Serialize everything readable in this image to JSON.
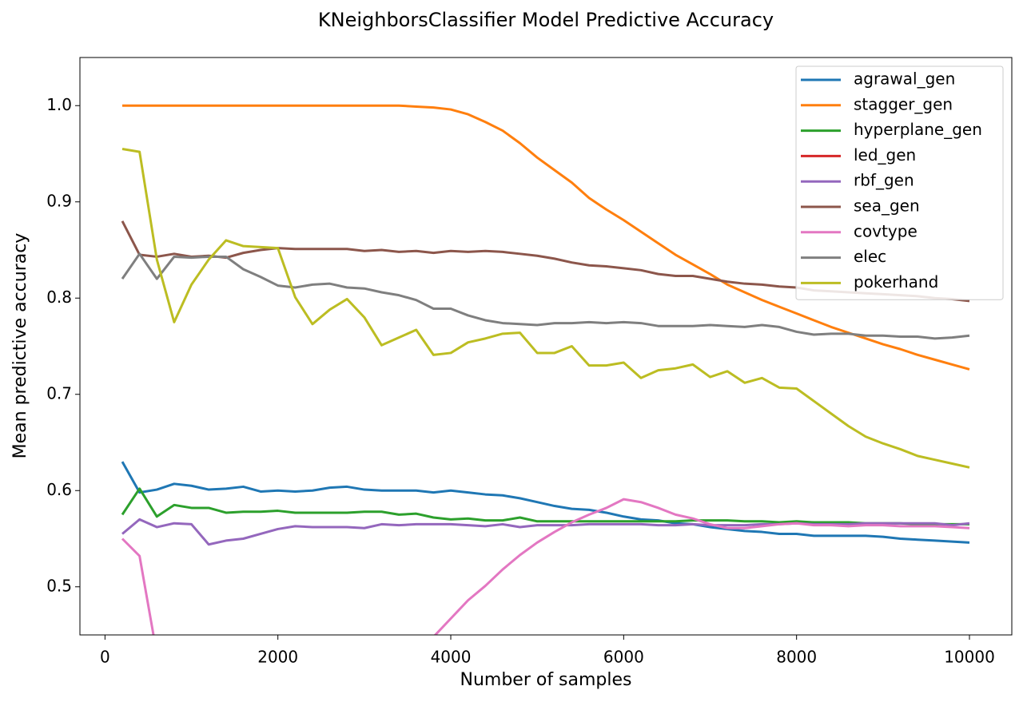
{
  "chart_data": {
    "type": "line",
    "title": "KNeighborsClassifier Model Predictive Accuracy",
    "xlabel": "Number of samples",
    "ylabel": "Mean predictive accuracy",
    "x": [
      200,
      400,
      600,
      800,
      1000,
      1200,
      1400,
      1600,
      1800,
      2000,
      2200,
      2400,
      2600,
      2800,
      3000,
      3200,
      3400,
      3600,
      3800,
      4000,
      4200,
      4400,
      4600,
      4800,
      5000,
      5200,
      5400,
      5600,
      5800,
      6000,
      6200,
      6400,
      6600,
      6800,
      7000,
      7200,
      7400,
      7600,
      7800,
      8000,
      8200,
      8400,
      8600,
      8800,
      9000,
      9200,
      9400,
      9600,
      9800,
      10000
    ],
    "xlim": [
      -290,
      10490
    ],
    "ylim": [
      0.45,
      1.05
    ],
    "xticks": [
      0,
      2000,
      4000,
      6000,
      8000,
      10000
    ],
    "yticks": [
      0.5,
      0.6,
      0.7,
      0.8,
      0.9,
      {
        "value": 1,
        "label": "1.0"
      }
    ],
    "legend": "upper right",
    "series": [
      {
        "name": "agrawal_gen",
        "color": "#1f77b4",
        "values": [
          0.63,
          0.598,
          0.601,
          0.607,
          0.605,
          0.601,
          0.602,
          0.604,
          0.599,
          0.6,
          0.599,
          0.6,
          0.603,
          0.604,
          0.601,
          0.6,
          0.6,
          0.6,
          0.598,
          0.6,
          0.598,
          0.596,
          0.595,
          0.592,
          0.588,
          0.584,
          0.581,
          0.58,
          0.577,
          0.573,
          0.57,
          0.569,
          0.566,
          0.565,
          0.562,
          0.56,
          0.558,
          0.557,
          0.555,
          0.555,
          0.553,
          0.553,
          0.553,
          0.553,
          0.552,
          0.55,
          0.549,
          0.548,
          0.547,
          0.546
        ]
      },
      {
        "name": "stagger_gen",
        "color": "#ff7f0e",
        "values": [
          1,
          1,
          1,
          1,
          1,
          1,
          1,
          1,
          1,
          1,
          1,
          1,
          1,
          1,
          1,
          1,
          1,
          0.999,
          0.998,
          0.996,
          0.991,
          0.983,
          0.974,
          0.961,
          0.946,
          0.933,
          0.92,
          0.904,
          0.892,
          0.881,
          0.869,
          0.857,
          0.845,
          0.835,
          0.825,
          0.814,
          0.806,
          0.798,
          0.791,
          0.784,
          0.777,
          0.77,
          0.764,
          0.758,
          0.752,
          0.747,
          0.741,
          0.736,
          0.731,
          0.726
        ]
      },
      {
        "name": "hyperplane_gen",
        "color": "#2ca02c",
        "values": [
          0.575,
          0.602,
          0.573,
          0.585,
          0.582,
          0.582,
          0.577,
          0.578,
          0.578,
          0.579,
          0.577,
          0.577,
          0.577,
          0.577,
          0.578,
          0.578,
          0.575,
          0.576,
          0.572,
          0.57,
          0.571,
          0.569,
          0.569,
          0.572,
          0.568,
          0.568,
          0.568,
          0.568,
          0.568,
          0.568,
          0.568,
          0.568,
          0.568,
          0.569,
          0.569,
          0.569,
          0.568,
          0.568,
          0.567,
          0.568,
          0.567,
          0.567,
          0.567,
          0.566,
          0.566,
          0.566,
          0.565,
          0.565,
          0.565,
          0.565
        ]
      },
      {
        "name": "led_gen",
        "color": "#d62728",
        "values": [
          null,
          null,
          null,
          null,
          null,
          null,
          null,
          null,
          null,
          null,
          null,
          null,
          null,
          null,
          null,
          null,
          null,
          null,
          null,
          null,
          null,
          null,
          null,
          null,
          null,
          null,
          null,
          null,
          null,
          null,
          null,
          null,
          null,
          null,
          null,
          null,
          null,
          null,
          null,
          null,
          null,
          null,
          null,
          null,
          null,
          null,
          null,
          null,
          null,
          null
        ]
      },
      {
        "name": "rbf_gen",
        "color": "#9467bd",
        "values": [
          0.555,
          0.57,
          0.562,
          0.566,
          0.565,
          0.544,
          0.548,
          0.55,
          0.555,
          0.56,
          0.563,
          0.562,
          0.562,
          0.562,
          0.561,
          0.565,
          0.564,
          0.565,
          0.565,
          0.565,
          0.564,
          0.563,
          0.565,
          0.562,
          0.564,
          0.564,
          0.564,
          0.565,
          0.565,
          0.565,
          0.565,
          0.564,
          0.564,
          0.565,
          0.564,
          0.564,
          0.564,
          0.565,
          0.565,
          0.566,
          0.565,
          0.565,
          0.565,
          0.566,
          0.566,
          0.566,
          0.566,
          0.566,
          0.564,
          0.566
        ]
      },
      {
        "name": "sea_gen",
        "color": "#8c564b",
        "values": [
          0.88,
          0.845,
          0.843,
          0.846,
          0.843,
          0.844,
          0.842,
          0.847,
          0.85,
          0.852,
          0.851,
          0.851,
          0.851,
          0.851,
          0.849,
          0.85,
          0.848,
          0.849,
          0.847,
          0.849,
          0.848,
          0.849,
          0.848,
          0.846,
          0.844,
          0.841,
          0.837,
          0.834,
          0.833,
          0.831,
          0.829,
          0.825,
          0.823,
          0.823,
          0.82,
          0.817,
          0.815,
          0.814,
          0.812,
          0.811,
          0.808,
          0.807,
          0.806,
          0.805,
          0.804,
          0.803,
          0.802,
          0.8,
          0.799,
          0.797
        ]
      },
      {
        "name": "covtype",
        "color": "#e377c2",
        "values": [
          0.55,
          0.532,
          0.43,
          null,
          null,
          null,
          null,
          null,
          null,
          null,
          null,
          null,
          null,
          null,
          null,
          null,
          null,
          null,
          0.448,
          0.467,
          0.486,
          0.501,
          0.518,
          0.533,
          0.546,
          0.557,
          0.567,
          0.575,
          0.582,
          0.591,
          0.588,
          0.582,
          0.575,
          0.571,
          0.565,
          0.561,
          0.561,
          0.563,
          0.565,
          0.566,
          0.564,
          0.564,
          0.563,
          0.564,
          0.564,
          0.563,
          0.563,
          0.563,
          0.562,
          0.561
        ]
      },
      {
        "name": "elec",
        "color": "#7f7f7f",
        "values": [
          0.82,
          0.846,
          0.82,
          0.843,
          0.842,
          0.843,
          0.843,
          0.83,
          0.822,
          0.813,
          0.811,
          0.814,
          0.815,
          0.811,
          0.81,
          0.806,
          0.803,
          0.798,
          0.789,
          0.789,
          0.782,
          0.777,
          0.774,
          0.773,
          0.772,
          0.774,
          0.774,
          0.775,
          0.774,
          0.775,
          0.774,
          0.771,
          0.771,
          0.771,
          0.772,
          0.771,
          0.77,
          0.772,
          0.77,
          0.765,
          0.762,
          0.763,
          0.763,
          0.761,
          0.761,
          0.76,
          0.76,
          0.758,
          0.759,
          0.761
        ]
      },
      {
        "name": "pokerhand",
        "color": "#bcbd22",
        "values": [
          0.955,
          0.952,
          0.84,
          0.775,
          0.814,
          0.84,
          0.86,
          0.854,
          0.853,
          0.852,
          0.801,
          0.773,
          0.788,
          0.799,
          0.78,
          0.751,
          0.759,
          0.767,
          0.741,
          0.743,
          0.754,
          0.758,
          0.763,
          0.764,
          0.743,
          0.743,
          0.75,
          0.73,
          0.73,
          0.733,
          0.717,
          0.725,
          0.727,
          0.731,
          0.718,
          0.724,
          0.712,
          0.717,
          0.707,
          0.706,
          0.693,
          0.68,
          0.667,
          0.656,
          0.649,
          0.643,
          0.636,
          0.632,
          0.628,
          0.624
        ]
      }
    ]
  }
}
